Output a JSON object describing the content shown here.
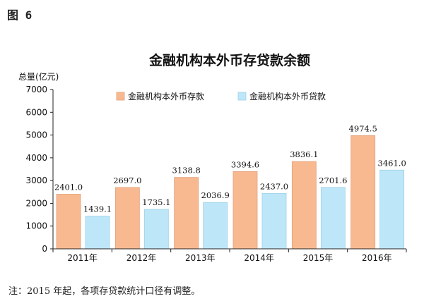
{
  "figure_label": "图 6",
  "note": "注：2015 年起，各项存贷款统计口径有调整。",
  "colors": {
    "deposit": "#f9b990",
    "loan": "#bde7f9",
    "axis": "#222222"
  },
  "chart_data": {
    "type": "bar",
    "title": "金融机构本外币存贷款余额",
    "ylabel": "总量(亿元)",
    "xlabel": "",
    "categories": [
      "2011年",
      "2012年",
      "2013年",
      "2014年",
      "2015年",
      "2016年"
    ],
    "yticks": [
      "0",
      "1000",
      "2000",
      "3000",
      "4000",
      "5000",
      "6000",
      "7000"
    ],
    "ylim": [
      0,
      7000
    ],
    "legend_position": "top",
    "grid": false,
    "series": [
      {
        "name": "金融机构本外币存款",
        "values": [
          2401.0,
          2697.0,
          3138.8,
          3394.6,
          3836.1,
          4974.5
        ],
        "labels": [
          "2401.0",
          "2697.0",
          "3138.8",
          "3394.6",
          "3836.1",
          "4974.5"
        ]
      },
      {
        "name": "金融机构本外币贷款",
        "values": [
          1439.1,
          1735.1,
          2036.9,
          2437.0,
          2701.6,
          3461.0
        ],
        "labels": [
          "1439.1",
          "1735.1",
          "2036.9",
          "2437.0",
          "2701.6",
          "3461.0"
        ]
      }
    ]
  }
}
